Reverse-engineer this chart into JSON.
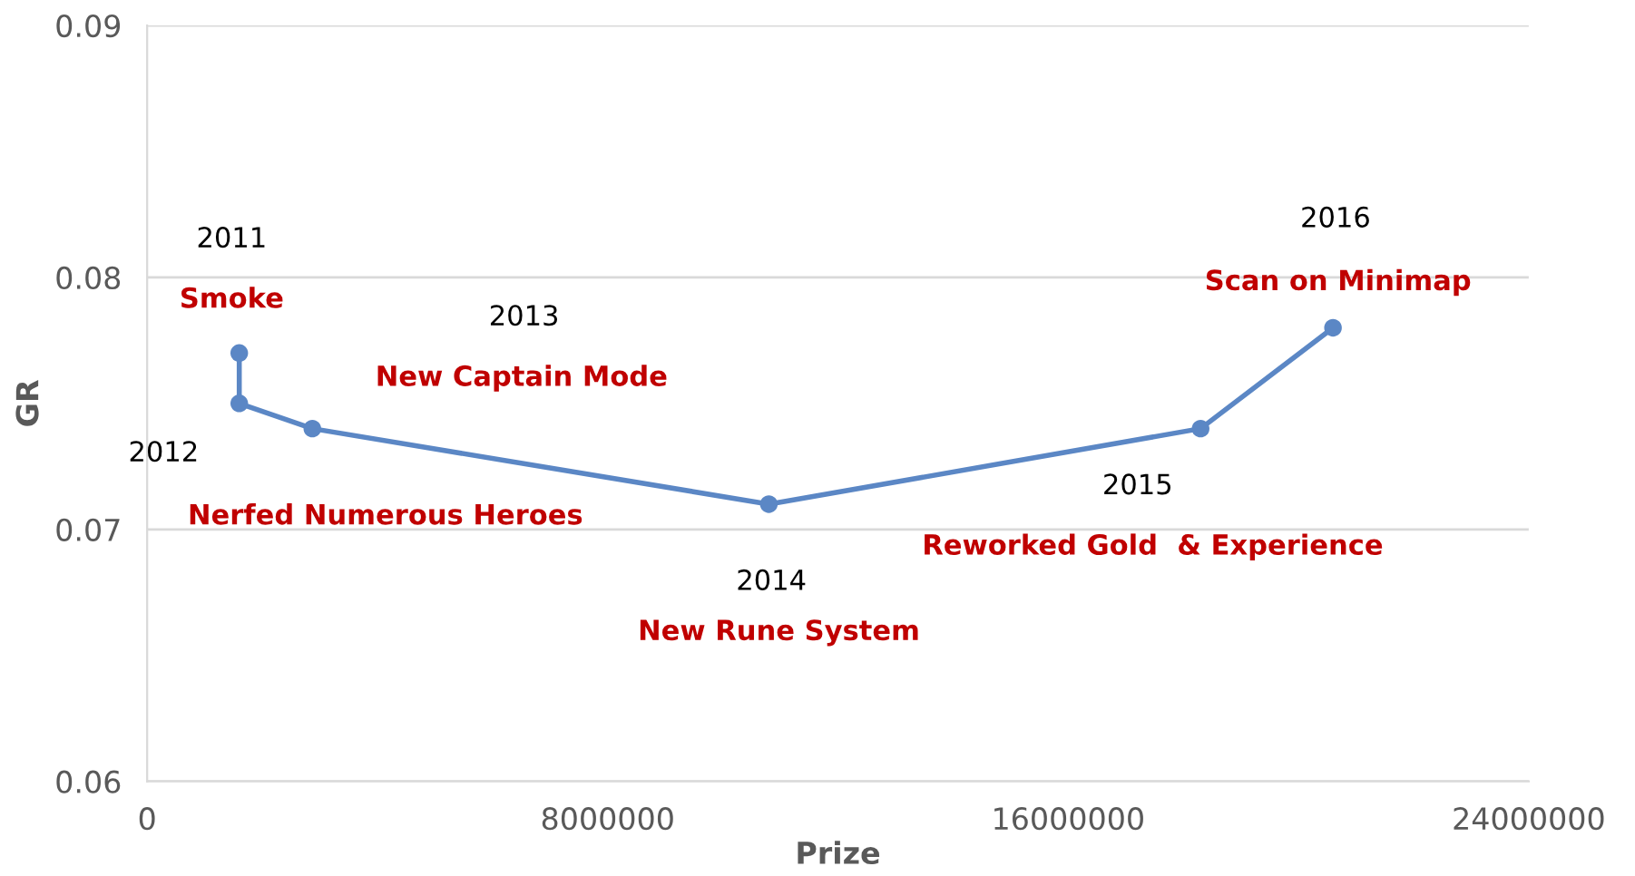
{
  "chart_data": {
    "type": "line",
    "xlabel": "Prize",
    "ylabel": "GR",
    "x": [
      1600000,
      1600000,
      2870000,
      10800000,
      18300000,
      20600000
    ],
    "series": [
      {
        "color": "#5b87c5",
        "values": [
          0.077,
          0.075,
          0.074,
          0.071,
          0.074,
          0.078
        ]
      }
    ],
    "xlim": [
      0,
      24000000
    ],
    "xticks": [
      0,
      8000000,
      16000000,
      24000000
    ],
    "ylim": [
      0.06,
      0.09
    ],
    "yticks": [
      0.06,
      0.07,
      0.08,
      0.09
    ],
    "grid": "y",
    "marker": "circle",
    "line_style": "solid",
    "annotations": [
      "2011",
      "Smoke",
      "2012",
      "Nerfed Numerous Heroes",
      "2013",
      "New Captain Mode",
      "2014",
      "New Rune System",
      "2015",
      "Reworked Gold  & Experience",
      "2016",
      "Scan on Minimap"
    ]
  }
}
